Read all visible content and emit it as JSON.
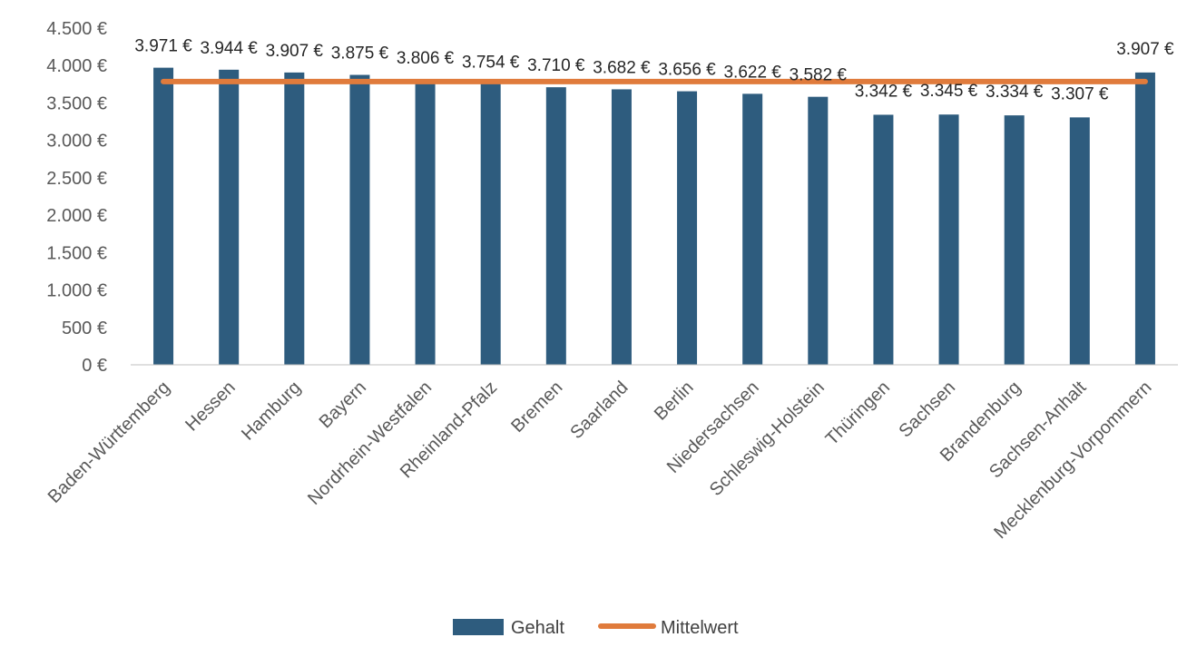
{
  "chart_data": {
    "type": "bar",
    "categories": [
      "Baden-Württemberg",
      "Hessen",
      "Hamburg",
      "Bayern",
      "Nordrhein-Westfalen",
      "Rheinland-Pfalz",
      "Bremen",
      "Saarland",
      "Berlin",
      "Niedersachsen",
      "Schleswig-Holstein",
      "Thüringen",
      "Sachsen",
      "Brandenburg",
      "Sachsen-Anhalt",
      "Mecklenburg-Vorpommern"
    ],
    "series": [
      {
        "name": "Gehalt",
        "type": "bar",
        "color": "#2E5C7E",
        "values": [
          3971,
          3944,
          3907,
          3875,
          3806,
          3754,
          3710,
          3682,
          3656,
          3622,
          3582,
          3342,
          3345,
          3334,
          3307,
          3907
        ],
        "labels": [
          "3.971 €",
          "3.944 €",
          "3.907 €",
          "3.875 €",
          "3.806 €",
          "3.754 €",
          "3.710 €",
          "3.682 €",
          "3.656 €",
          "3.622 €",
          "3.582 €",
          "3.342 €",
          "3.345 €",
          "3.334 €",
          "3.307 €",
          "3.907 €"
        ]
      },
      {
        "name": "Mittelwert",
        "type": "line",
        "color": "#E07B3C",
        "values": [
          3786,
          3786,
          3786,
          3786,
          3786,
          3786,
          3786,
          3786,
          3786,
          3786,
          3786,
          3786,
          3786,
          3786,
          3786,
          3786
        ]
      }
    ],
    "yticks": [
      0,
      500,
      1000,
      1500,
      2000,
      2500,
      3000,
      3500,
      4000,
      4500
    ],
    "ytick_labels": [
      "0 €",
      "500 €",
      "1.000 €",
      "1.500 €",
      "2.000 €",
      "2.500 €",
      "3.000 €",
      "3.500 €",
      "4.000 €",
      "4.500 €"
    ],
    "ylim": [
      0,
      4500
    ],
    "grid": false,
    "legend_position": "bottom",
    "title": "",
    "xlabel": "",
    "ylabel": ""
  }
}
